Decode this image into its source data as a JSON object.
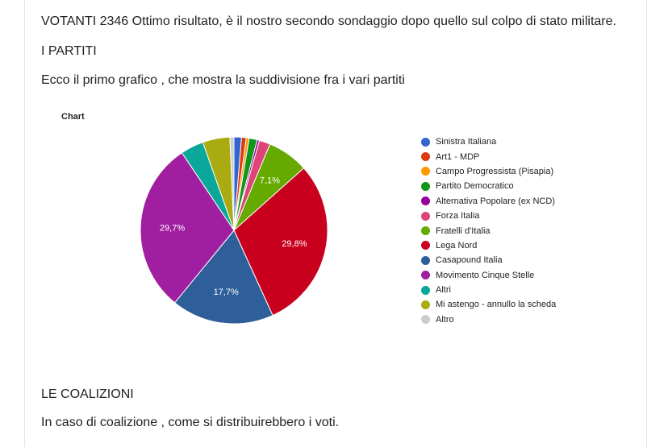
{
  "text": {
    "votanti": "VOTANTI 2346 Ottimo risultato, è il nostro secondo sondaggio dopo quello sul colpo di stato militare.",
    "partiti_heading": "I PARTITI",
    "ecco": "Ecco il primo grafico , che mostra la suddivisione fra i vari partiti",
    "coalizioni_heading": "LE COALIZIONI",
    "caso": "In caso di coalizione , come si distribuirebbero i voti."
  },
  "chart_data": {
    "type": "pie",
    "title": "Chart",
    "legend_position": "right",
    "start_angle_deg": 0,
    "slices": [
      {
        "label": "Sinistra Italiana",
        "value": 1.3,
        "color": "#3366cc",
        "data_label": ""
      },
      {
        "label": "Art1 - MDP",
        "value": 0.8,
        "color": "#dc3912",
        "data_label": ""
      },
      {
        "label": "Campo Progressista (Pisapia)",
        "value": 0.5,
        "color": "#ff9900",
        "data_label": ""
      },
      {
        "label": "Partito Democratico",
        "value": 1.4,
        "color": "#109618",
        "data_label": ""
      },
      {
        "label": "Alternativa Popolare (ex NCD)",
        "value": 0.4,
        "color": "#990099",
        "data_label": ""
      },
      {
        "label": "Forza Italia",
        "value": 1.9,
        "color": "#dd4477",
        "data_label": ""
      },
      {
        "label": "Fratelli d'Italia",
        "value": 7.1,
        "color": "#66aa00",
        "data_label": "7,1%"
      },
      {
        "label": "Lega Nord",
        "value": 29.8,
        "color": "#c8001e",
        "data_label": "29,8%"
      },
      {
        "label": "Casapound Italia",
        "value": 17.7,
        "color": "#2e5f9a",
        "data_label": "17,7%"
      },
      {
        "label": "Movimento Cinque Stelle",
        "value": 29.7,
        "color": "#a01fa0",
        "data_label": "29,7%"
      },
      {
        "label": "Altri",
        "value": 4.0,
        "color": "#0aa89a",
        "data_label": ""
      },
      {
        "label": "Mi astengo - annullo la scheda",
        "value": 4.7,
        "color": "#aaaa11",
        "data_label": ""
      },
      {
        "label": "Altro",
        "value": 0.7,
        "color": "#cccccc",
        "data_label": ""
      }
    ]
  }
}
